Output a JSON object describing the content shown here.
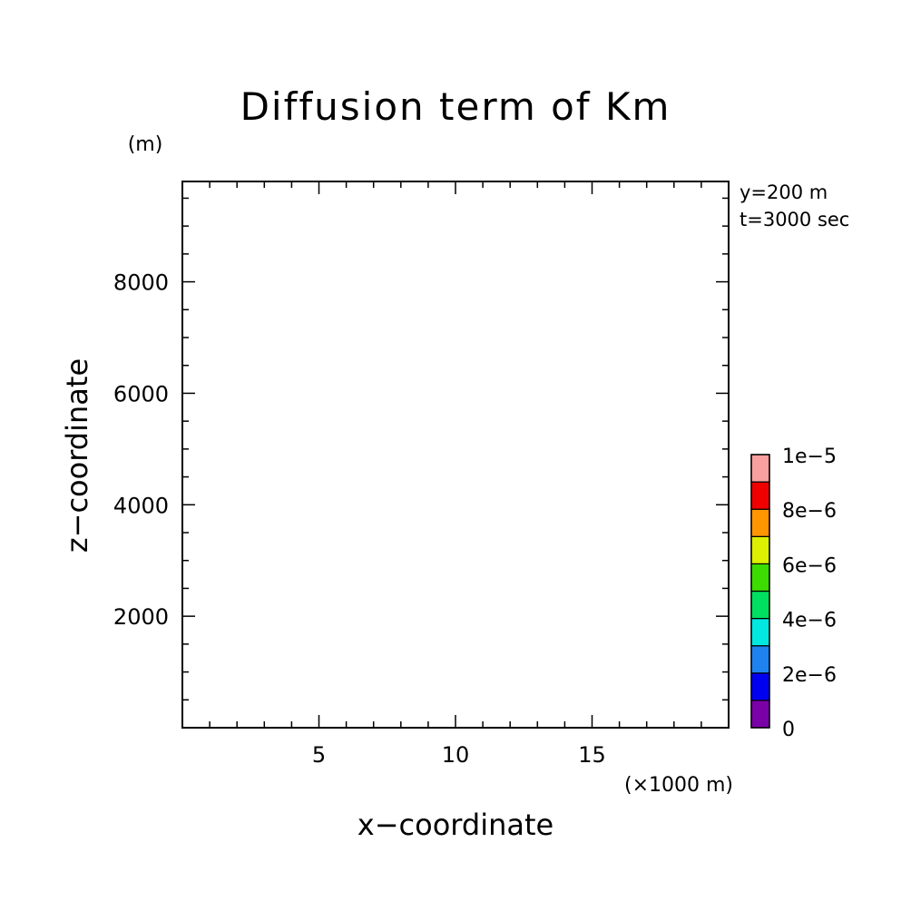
{
  "chart_data": {
    "type": "heatmap",
    "title": "Diffusion term of Km",
    "xlabel": "x−coordinate",
    "ylabel": "z−coordinate",
    "x_unit": "(×1000 m)",
    "y_unit": "(m)",
    "info_lines": [
      "y=200 m",
      "t=3000 sec"
    ],
    "xlim": [
      0,
      20
    ],
    "ylim": [
      0,
      9800
    ],
    "x_ticks": [
      5,
      10,
      15
    ],
    "x_tick_labels": [
      "5",
      "10",
      "15"
    ],
    "y_ticks": [
      2000,
      4000,
      6000,
      8000
    ],
    "y_tick_labels": [
      "2000",
      "4000",
      "6000",
      "8000"
    ],
    "grid": false,
    "field_values": [],
    "colorbar": {
      "levels": [
        0,
        1e-06,
        2e-06,
        3e-06,
        4e-06,
        5e-06,
        6e-06,
        7e-06,
        8e-06,
        9e-06,
        1e-05
      ],
      "labels": [
        {
          "value": 0,
          "text": "0"
        },
        {
          "value": 2e-06,
          "text": "2e−6"
        },
        {
          "value": 4e-06,
          "text": "4e−6"
        },
        {
          "value": 6e-06,
          "text": "6e−6"
        },
        {
          "value": 8e-06,
          "text": "8e−6"
        },
        {
          "value": 1e-05,
          "text": "1e−5"
        }
      ],
      "colors": [
        "#7a00a8",
        "#0000f0",
        "#1e82f0",
        "#00e8e0",
        "#00e060",
        "#3cdc00",
        "#dcf000",
        "#ff9600",
        "#f00000",
        "#f8a0a0"
      ]
    }
  }
}
